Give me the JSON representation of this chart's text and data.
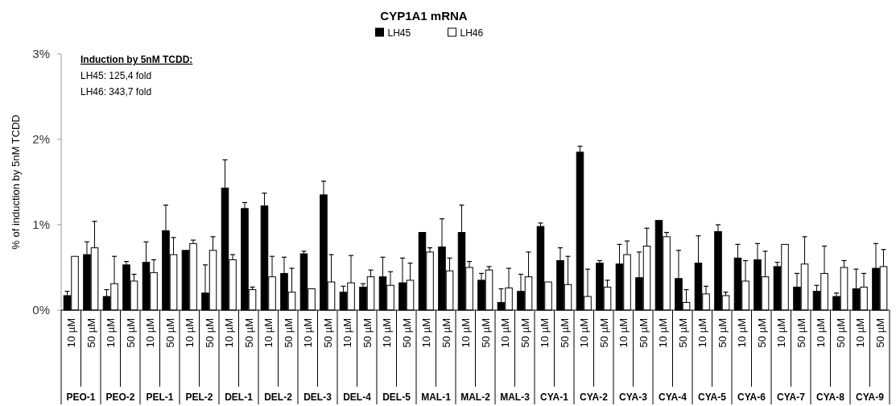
{
  "chart_data": {
    "type": "bar",
    "title": "CYP1A1 mRNA",
    "ylabel": "% of induction by 5nM TCDD",
    "categories": [
      "10 µM",
      "50 µM",
      "10 µM",
      "50 µM",
      "10 µM",
      "50 µM",
      "10 µM",
      "50 µM",
      "10 µM",
      "50 µM",
      "10 µM",
      "50 µM",
      "10 µM",
      "50 µM",
      "10 µM",
      "50 µM",
      "10 µM",
      "50 µM",
      "10 µM",
      "50 µM",
      "10 µM",
      "50 µM",
      "10 µM",
      "50 µM",
      "10 µM",
      "50 µM",
      "10 µM",
      "50 µM",
      "10 µM",
      "50 µM",
      "10 µM",
      "50 µM",
      "10 µM",
      "50 µM",
      "10 µM",
      "50 µM",
      "10 µM",
      "50 µM",
      "10 µM",
      "50 µM",
      "10 µM",
      "50 µM"
    ],
    "series": [
      {
        "name": "LH45",
        "color": "#000000",
        "values": [
          0.17,
          0.65,
          0.16,
          0.53,
          0.56,
          0.93,
          0.7,
          0.2,
          1.43,
          1.19,
          1.22,
          0.43,
          0.66,
          1.35,
          0.21,
          0.27,
          0.39,
          0.32,
          0.91,
          0.74,
          0.91,
          0.35,
          0.09,
          0.22,
          0.98,
          0.58,
          1.85,
          0.55,
          0.54,
          0.38,
          1.05,
          0.37,
          0.55,
          0.92,
          0.61,
          0.59,
          0.51,
          0.27,
          0.22,
          0.16,
          0.25,
          0.49
        ],
        "errors": [
          [
            0.17,
            0.22
          ],
          [
            0.65,
            0.8
          ],
          [
            0.16,
            0.24
          ],
          [
            0.53,
            0.57
          ],
          [
            0.56,
            0.8
          ],
          [
            0.93,
            1.23
          ],
          null,
          [
            0.2,
            0.53
          ],
          [
            1.43,
            1.76
          ],
          [
            1.19,
            1.26
          ],
          [
            1.22,
            1.37
          ],
          [
            0.43,
            0.62
          ],
          [
            0.66,
            0.69
          ],
          [
            1.35,
            1.51
          ],
          [
            0.21,
            0.28
          ],
          [
            0.27,
            0.31
          ],
          [
            0.39,
            0.62
          ],
          [
            0.32,
            0.61
          ],
          null,
          [
            0.74,
            1.07
          ],
          [
            0.91,
            1.23
          ],
          [
            0.35,
            0.43
          ],
          [
            0.09,
            0.25
          ],
          [
            0.22,
            0.42
          ],
          [
            0.98,
            1.02
          ],
          [
            0.58,
            0.73
          ],
          [
            1.85,
            1.92
          ],
          [
            0.55,
            0.58
          ],
          [
            0.54,
            0.77
          ],
          [
            0.38,
            0.68
          ],
          null,
          [
            0.37,
            0.7
          ],
          [
            0.55,
            0.87
          ],
          [
            0.92,
            1.0
          ],
          [
            0.61,
            0.77
          ],
          [
            0.59,
            0.78
          ],
          [
            0.51,
            0.56
          ],
          [
            0.27,
            0.43
          ],
          [
            0.22,
            0.29
          ],
          [
            0.16,
            0.2
          ],
          [
            0.25,
            0.48
          ],
          [
            0.49,
            0.78
          ]
        ]
      },
      {
        "name": "LH46",
        "color": "#ffffff",
        "values": [
          0.63,
          0.73,
          0.31,
          0.34,
          0.44,
          0.65,
          0.78,
          0.7,
          0.59,
          0.24,
          0.39,
          0.21,
          0.25,
          0.33,
          0.32,
          0.39,
          0.29,
          0.35,
          0.68,
          0.46,
          0.5,
          0.47,
          0.26,
          0.39,
          0.33,
          0.3,
          0.16,
          0.27,
          0.65,
          0.75,
          0.86,
          0.09,
          0.19,
          0.17,
          0.34,
          0.39,
          0.77,
          0.54,
          0.43,
          0.5,
          0.27,
          0.51
        ],
        "errors": [
          null,
          [
            0.73,
            1.04
          ],
          [
            0.31,
            0.63
          ],
          [
            0.34,
            0.42
          ],
          [
            0.44,
            0.59
          ],
          [
            0.65,
            0.85
          ],
          [
            0.78,
            0.82
          ],
          [
            0.7,
            0.86
          ],
          [
            0.59,
            0.65
          ],
          [
            0.24,
            0.27
          ],
          [
            0.39,
            0.63
          ],
          [
            0.21,
            0.49
          ],
          null,
          [
            0.33,
            0.65
          ],
          [
            0.32,
            0.64
          ],
          [
            0.39,
            0.47
          ],
          [
            0.29,
            0.45
          ],
          [
            0.35,
            0.55
          ],
          [
            0.68,
            0.73
          ],
          [
            0.46,
            0.61
          ],
          [
            0.5,
            0.57
          ],
          [
            0.47,
            0.51
          ],
          [
            0.26,
            0.49
          ],
          [
            0.39,
            0.68
          ],
          null,
          [
            0.3,
            0.63
          ],
          [
            0.16,
            0.48
          ],
          [
            0.27,
            0.35
          ],
          [
            0.65,
            0.81
          ],
          [
            0.75,
            0.96
          ],
          [
            0.86,
            0.91
          ],
          [
            0.09,
            0.24
          ],
          [
            0.19,
            0.28
          ],
          [
            0.17,
            0.21
          ],
          [
            0.34,
            0.58
          ],
          [
            0.39,
            0.69
          ],
          null,
          [
            0.54,
            0.86
          ],
          [
            0.43,
            0.75
          ],
          [
            0.5,
            0.58
          ],
          [
            0.27,
            0.43
          ],
          [
            0.51,
            0.71
          ]
        ]
      }
    ],
    "ylim": [
      0,
      3
    ],
    "yticks": [
      {
        "value": 0,
        "label": "0%"
      },
      {
        "value": 1,
        "label": "1%"
      },
      {
        "value": 2,
        "label": "2%"
      },
      {
        "value": 3,
        "label": "3%"
      }
    ],
    "grid": false,
    "legend": "top",
    "annotations": [
      "Induction by 5nM TCDD:",
      "LH45: 125,4 fold",
      "LH46: 343,7 fold",
      "PEO-1",
      "PEO-2",
      "PEL-1",
      "PEL-2",
      "DEL-1",
      "DEL-2",
      "DEL-3",
      "DEL-4",
      "DEL-5",
      "MAL-1",
      "MAL-2",
      "MAL-3",
      "CYA-1",
      "CYA-2",
      "CYA-3",
      "CYA-4",
      "CYA-5",
      "CYA-6",
      "CYA-7",
      "CYA-8",
      "CYA-9"
    ]
  }
}
